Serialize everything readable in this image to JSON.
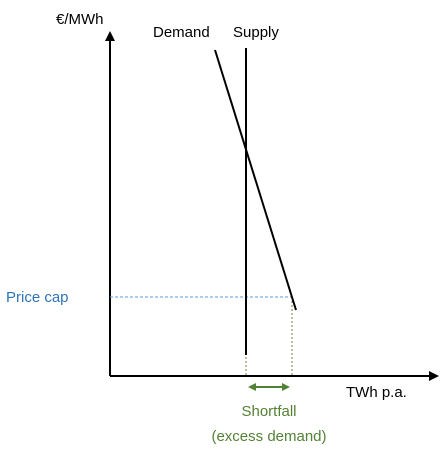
{
  "diagram": {
    "y_axis_label": "€/MWh",
    "x_axis_label": "TWh p.a.",
    "demand_label": "Demand",
    "supply_label": "Supply",
    "price_cap_label": "Price cap",
    "shortfall_label": "Shortfall",
    "shortfall_note": "(excess demand)"
  },
  "colors": {
    "axis": "#000000",
    "curves": "#000000",
    "price_cap": "#2e75b6",
    "price_cap_line": "#5b9bd5",
    "shortfall": "#548235",
    "guide": "#8c6d46"
  }
}
